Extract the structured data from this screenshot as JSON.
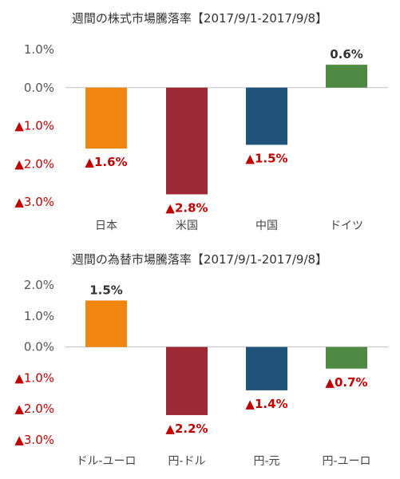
{
  "chart_data": [
    {
      "type": "bar",
      "title": "週間の株式市場騰落率【2017/9/1-2017/9/8】",
      "categories": [
        "日本",
        "米国",
        "中国",
        "ドイツ"
      ],
      "values": [
        -1.6,
        -2.8,
        -1.5,
        0.6
      ],
      "data_labels": [
        "▲1.6%",
        "▲2.8%",
        "▲1.5%",
        "0.6%"
      ],
      "bar_colors": [
        "#f0850f",
        "#9e2a35",
        "#1f5379",
        "#4e8a43"
      ],
      "ylim": [
        -3.0,
        1.0
      ],
      "y_ticks": [
        1.0,
        0.0,
        -1.0,
        -2.0,
        -3.0
      ],
      "y_tick_labels": [
        "1.0%",
        "0.0%",
        "▲1.0%",
        "▲2.0%",
        "▲3.0%"
      ],
      "y_tick_negative": [
        false,
        false,
        true,
        true,
        true
      ],
      "grid": false,
      "xlabel": "",
      "ylabel": ""
    },
    {
      "type": "bar",
      "title": "週間の為替市場騰落率【2017/9/1-2017/9/8】",
      "categories": [
        "ドル-ユーロ",
        "円-ドル",
        "円-元",
        "円-ユーロ"
      ],
      "values": [
        1.5,
        -2.2,
        -1.4,
        -0.7
      ],
      "data_labels": [
        "1.5%",
        "▲2.2%",
        "▲1.4%",
        "▲0.7%"
      ],
      "bar_colors": [
        "#f0850f",
        "#9e2a35",
        "#1f5379",
        "#4e8a43"
      ],
      "ylim": [
        -3.0,
        2.0
      ],
      "y_ticks": [
        2.0,
        1.0,
        0.0,
        -1.0,
        -2.0,
        -3.0
      ],
      "y_tick_labels": [
        "2.0%",
        "1.0%",
        "0.0%",
        "▲1.0%",
        "▲2.0%",
        "▲3.0%"
      ],
      "y_tick_negative": [
        false,
        false,
        false,
        true,
        true,
        true
      ],
      "grid": false,
      "xlabel": "",
      "ylabel": ""
    }
  ],
  "colors": {
    "negative_text": "#c00000",
    "positive_text": "#333333",
    "tick_text": "#555555",
    "axis": "#bfbfbf"
  }
}
